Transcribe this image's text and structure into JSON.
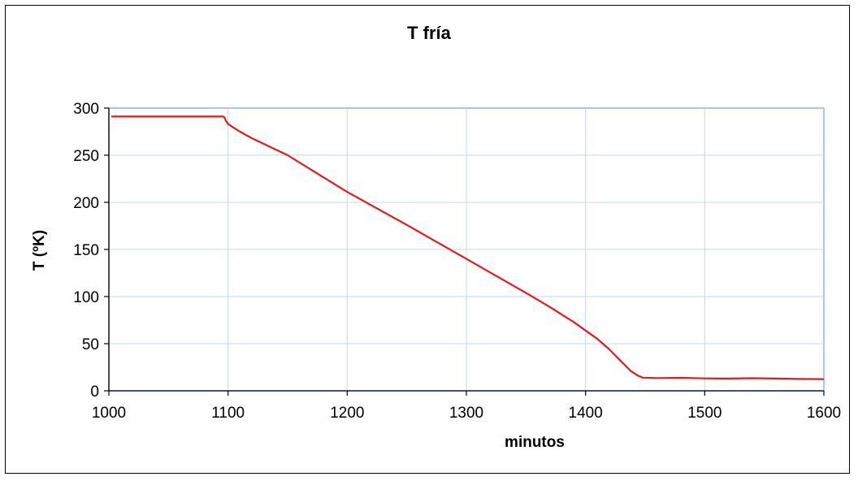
{
  "chart_data": {
    "type": "line",
    "title": "T fría",
    "xlabel": "minutos",
    "ylabel": "T (ºK)",
    "xlim": [
      1000,
      1600
    ],
    "ylim": [
      0,
      300
    ],
    "xticks": [
      1000,
      1100,
      1200,
      1300,
      1400,
      1500,
      1600
    ],
    "yticks": [
      0,
      50,
      100,
      150,
      200,
      250,
      300
    ],
    "grid": true,
    "legend": "none",
    "series": [
      {
        "color": "#e31a1c",
        "points": [
          [
            1002,
            291
          ],
          [
            1050,
            291
          ],
          [
            1096,
            291
          ],
          [
            1097,
            290
          ],
          [
            1098,
            287
          ],
          [
            1100,
            283
          ],
          [
            1105,
            279
          ],
          [
            1110,
            275
          ],
          [
            1120,
            268
          ],
          [
            1150,
            250
          ],
          [
            1200,
            211
          ],
          [
            1250,
            176
          ],
          [
            1300,
            140
          ],
          [
            1350,
            104
          ],
          [
            1370,
            89
          ],
          [
            1390,
            73
          ],
          [
            1400,
            64
          ],
          [
            1410,
            55
          ],
          [
            1420,
            44
          ],
          [
            1430,
            31
          ],
          [
            1438,
            21
          ],
          [
            1444,
            16
          ],
          [
            1448,
            14
          ],
          [
            1460,
            13.5
          ],
          [
            1480,
            13.8
          ],
          [
            1500,
            13.2
          ],
          [
            1520,
            13.0
          ],
          [
            1540,
            13.4
          ],
          [
            1560,
            13.0
          ],
          [
            1580,
            12.6
          ],
          [
            1600,
            12.4
          ]
        ]
      }
    ]
  }
}
